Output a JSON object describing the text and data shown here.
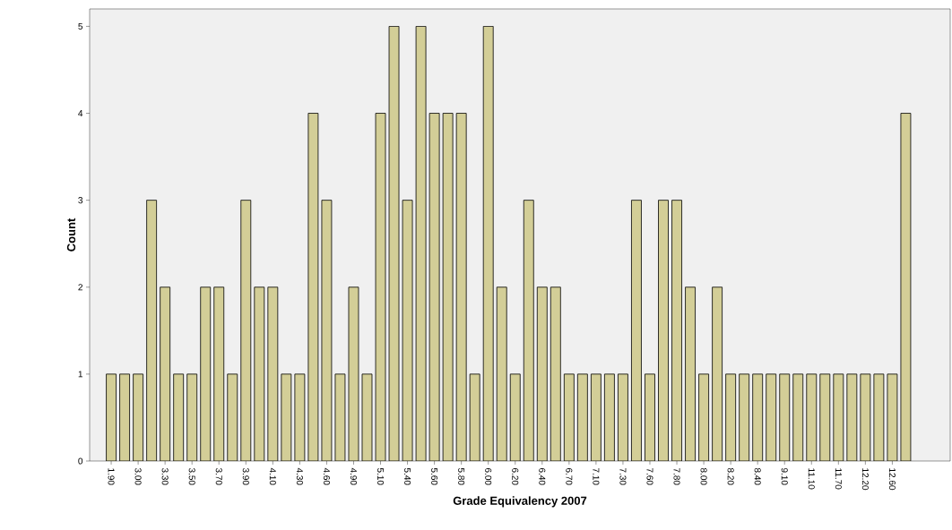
{
  "chart_data": {
    "type": "bar",
    "xlabel": "Grade Equivalency 2007",
    "ylabel": "Count",
    "categories": [
      "1.90",
      null,
      "3.00",
      null,
      "3.30",
      null,
      "3.50",
      null,
      "3.70",
      null,
      "3.90",
      null,
      "4.10",
      null,
      "4.30",
      null,
      "4.60",
      null,
      "4.90",
      null,
      "5.10",
      null,
      "5.40",
      null,
      "5.60",
      null,
      "5.80",
      null,
      "6.00",
      null,
      "6.20",
      null,
      "6.40",
      null,
      "6.70",
      null,
      "7.10",
      null,
      "7.30",
      null,
      "7.60",
      null,
      "7.80",
      null,
      "8.00",
      null,
      "8.20",
      null,
      "8.40",
      null,
      "9.10",
      null,
      "11.10",
      null,
      "11.70",
      null,
      "12.20",
      null,
      "12.60",
      null
    ],
    "values": [
      1,
      1,
      1,
      3,
      2,
      1,
      1,
      2,
      2,
      1,
      3,
      2,
      2,
      1,
      1,
      4,
      3,
      1,
      2,
      1,
      4,
      5,
      3,
      5,
      4,
      4,
      4,
      1,
      5,
      2,
      1,
      3,
      2,
      2,
      1,
      1,
      1,
      1,
      1,
      3,
      1,
      3,
      3,
      2,
      1,
      2,
      1,
      1,
      1,
      1,
      1,
      1,
      1,
      1,
      1,
      1,
      1,
      1,
      1,
      4
    ],
    "color": "#d3ce97",
    "ylim": [
      0,
      5.2
    ],
    "yticks": [
      0,
      1,
      2,
      3,
      4,
      5
    ],
    "grid": false
  }
}
